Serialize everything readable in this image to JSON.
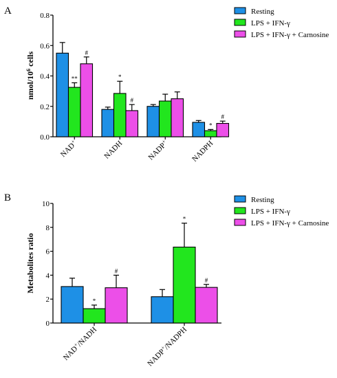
{
  "colors": {
    "series": [
      "#1e90e6",
      "#22e61e",
      "#ec4fe8"
    ],
    "axis": "#000000",
    "bar_stroke": "#000000"
  },
  "panels": [
    {
      "label": "A",
      "chart_data": {
        "type": "bar",
        "title": "",
        "xlabel": "",
        "ylabel": "nmol/10^6 cells",
        "ylim": [
          0,
          0.8
        ],
        "yticks": [
          "0.0",
          "0.2",
          "0.4",
          "0.6",
          "0.8"
        ],
        "categories": [
          "NAD+",
          "NADH",
          "NADP+",
          "NADPH"
        ],
        "series": [
          {
            "name": "Resting",
            "values": [
              0.55,
              0.18,
              0.2,
              0.095
            ],
            "errors": [
              0.07,
              0.015,
              0.012,
              0.012
            ]
          },
          {
            "name": "LPS + IFN-γ",
            "values": [
              0.325,
              0.285,
              0.235,
              0.04
            ],
            "errors": [
              0.03,
              0.08,
              0.045,
              0.008
            ]
          },
          {
            "name": "LPS + IFN-γ + Carnosine",
            "values": [
              0.48,
              0.172,
              0.25,
              0.088
            ],
            "errors": [
              0.045,
              0.04,
              0.045,
              0.015
            ]
          }
        ],
        "annotations": [
          {
            "series": 1,
            "category": 0,
            "text": "**"
          },
          {
            "series": 2,
            "category": 0,
            "text": "#"
          },
          {
            "series": 1,
            "category": 1,
            "text": "*"
          },
          {
            "series": 2,
            "category": 1,
            "text": "#"
          },
          {
            "series": 1,
            "category": 3,
            "text": "*"
          },
          {
            "series": 2,
            "category": 3,
            "text": "#"
          }
        ],
        "grid": false,
        "legend": "top-right"
      }
    },
    {
      "label": "B",
      "chart_data": {
        "type": "bar",
        "title": "",
        "xlabel": "",
        "ylabel": "Metabolites ratio",
        "ylim": [
          0,
          10
        ],
        "yticks": [
          "0",
          "2",
          "4",
          "6",
          "8",
          "10"
        ],
        "categories": [
          "NAD+/NADH",
          "NADP+/NADPH"
        ],
        "series": [
          {
            "name": "Resting",
            "values": [
              3.05,
              2.2
            ],
            "errors": [
              0.7,
              0.6
            ]
          },
          {
            "name": "LPS + IFN-γ",
            "values": [
              1.2,
              6.35
            ],
            "errors": [
              0.3,
              2.0
            ]
          },
          {
            "name": "LPS + IFN-γ + Carnosine",
            "values": [
              2.95,
              2.98
            ],
            "errors": [
              1.05,
              0.25
            ]
          }
        ],
        "annotations": [
          {
            "series": 1,
            "category": 0,
            "text": "*"
          },
          {
            "series": 2,
            "category": 0,
            "text": "#"
          },
          {
            "series": 1,
            "category": 1,
            "text": "*"
          },
          {
            "series": 2,
            "category": 1,
            "text": "#"
          }
        ],
        "grid": false,
        "legend": "top-right"
      }
    }
  ]
}
